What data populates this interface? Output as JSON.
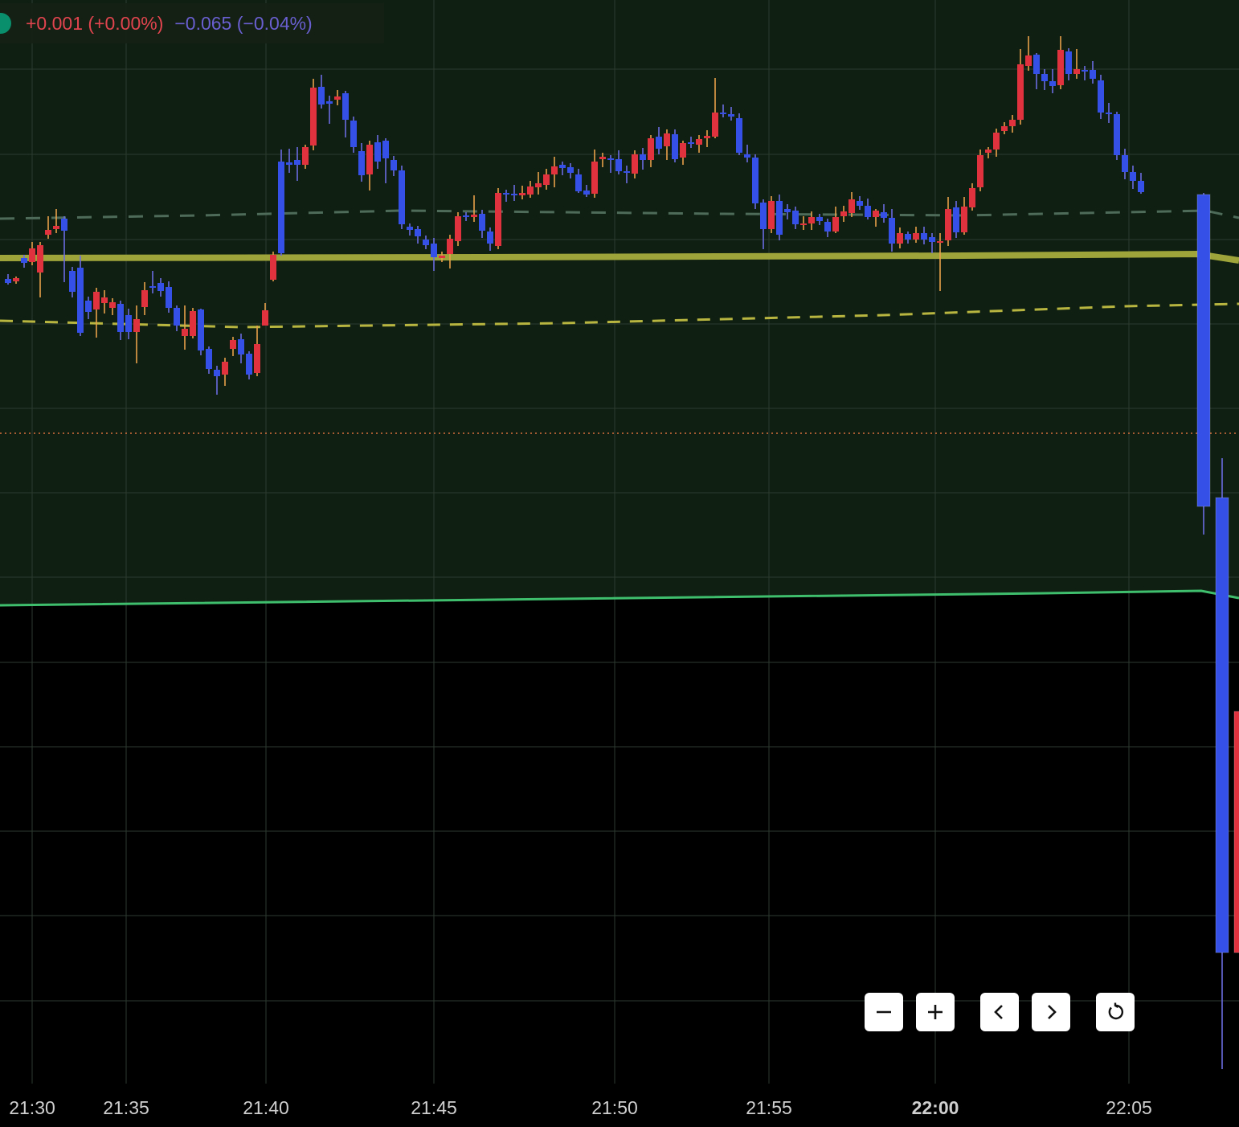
{
  "legend": {
    "change_abs": "+0.001",
    "change_pct": "(+0.00%)",
    "change2_abs": "−0.065",
    "change2_pct": "(−0.04%)"
  },
  "colors": {
    "up": "#e0313f",
    "down": "#3550e6",
    "wick_up": "#e8a04a",
    "wick_down": "#6b6be0",
    "highlight_bg": "#0f2012",
    "ma_solid": "#9ea33a",
    "ma_dashed": "#b8b640",
    "ma_gray": "#4e6b5a",
    "ma_green": "#3fbf6d",
    "price_line": "#d9713a",
    "grid": "#2e3a30"
  },
  "controls": [
    {
      "id": "zoom-out",
      "icon": "minus-icon"
    },
    {
      "id": "zoom-in",
      "icon": "plus-icon"
    },
    {
      "id": "scroll-left",
      "icon": "chevron-left-icon"
    },
    {
      "id": "scroll-right",
      "icon": "chevron-right-icon"
    },
    {
      "id": "reset",
      "icon": "reset-icon"
    }
  ],
  "chart_data": {
    "type": "candlestick",
    "x_ticks": [
      {
        "label": "21:30",
        "bold": false
      },
      {
        "label": "21:35",
        "bold": false
      },
      {
        "label": "21:40",
        "bold": false
      },
      {
        "label": "21:45",
        "bold": false
      },
      {
        "label": "21:50",
        "bold": false
      },
      {
        "label": "21:55",
        "bold": false
      },
      {
        "label": "22:00",
        "bold": true
      },
      {
        "label": "22:05",
        "bold": false
      }
    ],
    "candles_compact": "0,347,352,341,354;1,350,346,344,353;2,321,327,317,333;3,326,309,301,330;4,339,305,301,370;5,292,286,269,297;6,285,281,260,290;7,272,287,269,351;8,337,363,332,370;9,333,414,318,418;10,374,388,369,397;11,385,363,358,420;12,377,370,361,390;13,383,376,371,392;14,378,413,374,423;15,392,413,384,422;16,413,397,380,452;17,382,361,351,392;18,356,358,337,365;19,352,362,346,369;20,357,383,350,389;21,383,405,380,412;22,418,409,380,435;23,418,387,383,421;24,385,436,384,442;25,434,459,431,465;26,460,468,455,491;27,466,450,445,480;28,434,423,419,443;29,422,441,415,452;30,440,466,437,472;31,464,428,405,468;32,405,386,377,398;33,348,317,313,350;34,201,315,186,318;35,202,205,185,215;36,199,205,183,225;37,205,183,180,210;38,181,109,98,187;39,108,130,93,135;40,126,129,119,154;41,124,120,112,131;42,116,149,113,171;43,150,183,145,190;44,188,218,178,226;45,217,180,175,237;46,177,201,168,210;47,175,197,172,228;48,199,212,194,219;49,212,279,206,285;50,282,286,278,293;51,285,294,281,303;52,298,305,293,310;53,303,320,296,337;54,321,318,313,326;55,316,297,292,334;56,300,269,264,306;57,268,270,264,275;58,270,267,243,276;59,266,287,261,296;60,288,303,283,312;61,306,240,234,310;62,240,242,236,251;63,241,243,230,250;64,243,240,231,248;65,242,232,225,246;66,233,228,214,242;67,230,217,210,236;68,217,207,195,233;69,205,209,201,218;70,208,215,203,222;71,217,238,210,240;72,237,242,230,245;73,241,201,186,246;74,198,195,190,208;75,197,198,193,215;76,198,213,187,217;77,213,215,206,228;78,216,192,187,222;79,192,199,184,211;80,199,172,168,208;81,170,185,158,192;82,182,166,161,199;83,167,198,161,202;84,196,178,175,205;85,177,179,170,184;86,180,173,168,190;87,172,169,162,183;88,170,140,97,172;89,140,141,130,146;90,142,145,133,150;91,147,190,141,193;92,192,196,180,202;93,196,253,192,260;94,252,285,248,310;95,285,250,244,290;96,250,292,242,299;97,260,264,254,273;98,262,279,257,285;99,280,278,269,286;100,278,270,263,286;101,270,275,266,280;102,276,288,272,295;103,288,270,257,290;104,269,263,256,276;105,265,248,239,270;106,250,256,244,261;107,256,270,247,273;108,270,262,260,282;109,264,271,254,277;110,271,303,260,313;111,303,290,283,309;112,291,298,288,303;113,298,290,282,302;114,290,298,282,304;115,295,301,290,315;116,301,300,290,362;117,299,260,245,306;118,258,289,250,296;119,289,257,245,292;120,258,234,228,262;121,233,193,186,238;122,190,186,183,197;123,186,165,160,195;124,163,157,152,167;125,157,149,143,165;126,149,80,61,155;127,82,69,45,88;128,68,92,66,111;129,92,101,86,112;130,101,107,86,116;131,106,62,45,111;132,64,92,60,100;133,92,86,61,98;134,87,89,82,100;135,87,98,76,104;136,100,140,93,148;137,140,141,128,153;138,142,193,139,199;139,193,214,185,223;140,214,225,206,235;141,225,239,215,241;142,242,630,240,665;143,619,1185,570,1330;144,1185,885,880,1190",
    "candle_spacing": 10,
    "candle_x0": 0,
    "note": "values are screen-proxy price levels (higher number = lower price); axis price labels not shown"
  },
  "overlays": {
    "ma_solid_points": "0,321;600,320;1200,318;1490,316;1542,324",
    "ma_dashed_points": "0,399;300,407;700,402;1100,392;1400,381;1542,378",
    "ma_gray_points": "0,272;250,268;500,262;900,266;1200,268;1500,262;1542,271",
    "ma_green_points": "0,753;700,745;1300,738;1495,735;1542,744",
    "price_line_y": 539
  }
}
